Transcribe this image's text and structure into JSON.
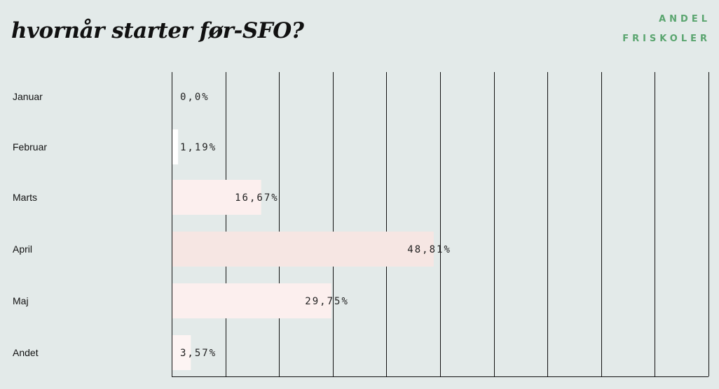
{
  "title": "hvornår starter før-SFO?",
  "brand": {
    "line1": "ANDEL",
    "line2": "FRISKOLER",
    "color": "#5aa56f"
  },
  "chart_data": {
    "type": "bar",
    "orientation": "horizontal",
    "categories": [
      "Januar",
      "Februar",
      "Marts",
      "April",
      "Maj",
      "Andet"
    ],
    "values": [
      0.0,
      1.19,
      16.67,
      48.81,
      29.75,
      3.57
    ],
    "data_labels": [
      "0,0%",
      "1,19%",
      "16,67%",
      "48,81%",
      "29,75%",
      "3,57%"
    ],
    "bar_colors": [
      "#fdf1f0",
      "#ffffff",
      "#fcefee",
      "#f6e6e3",
      "#fcefee",
      "#fdf4f3"
    ],
    "xlim": [
      0,
      100
    ],
    "grid": true,
    "grid_color": "#111111"
  }
}
